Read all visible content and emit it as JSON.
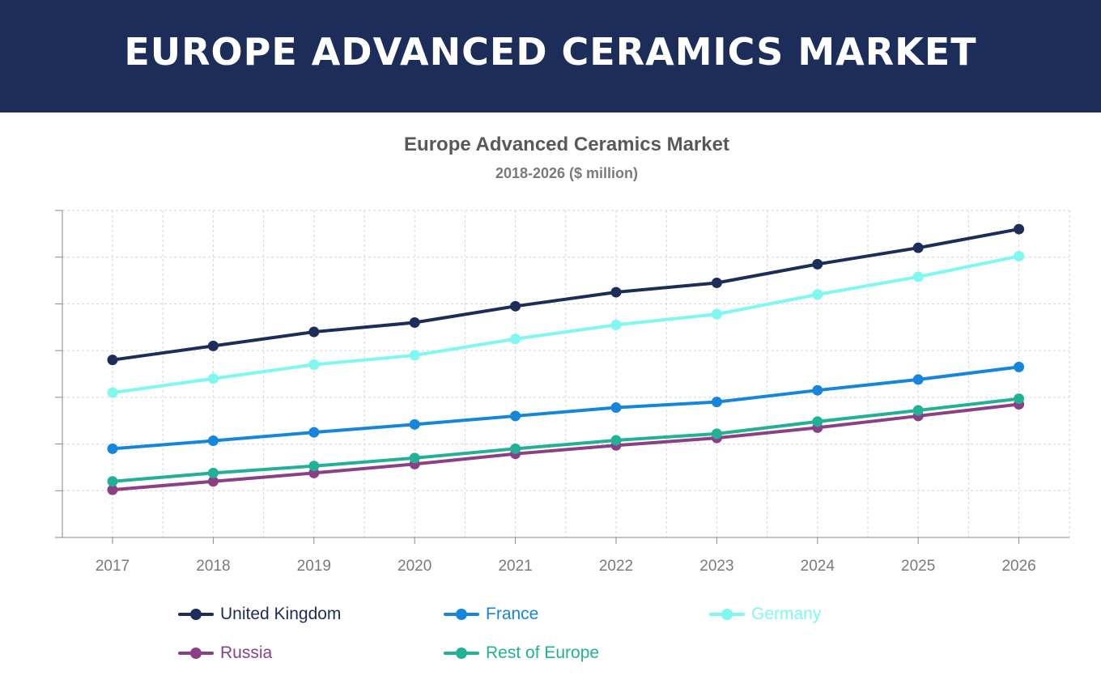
{
  "banner": {
    "title": "EUROPE ADVANCED CERAMICS MARKET"
  },
  "chart_data": {
    "type": "line",
    "title": "Europe Advanced Ceramics Market",
    "subtitle": "2018-2026 ($ million)",
    "xlabel": "",
    "ylabel": "",
    "x": [
      "2017",
      "2018",
      "2019",
      "2020",
      "2021",
      "2022",
      "2023",
      "2024",
      "2025",
      "2026"
    ],
    "ylim": [
      0,
      7
    ],
    "grid": true,
    "legend_position": "bottom",
    "series": [
      {
        "name": "United Kingdom",
        "color": "#1b2d58",
        "values": [
          3.8,
          4.1,
          4.4,
          4.6,
          4.95,
          5.25,
          5.45,
          5.85,
          6.2,
          6.6
        ]
      },
      {
        "name": "France",
        "color": "#1586d9",
        "values": [
          1.9,
          2.07,
          2.25,
          2.42,
          2.6,
          2.78,
          2.9,
          3.15,
          3.38,
          3.65
        ]
      },
      {
        "name": "Germany",
        "color": "#7ff8f0",
        "values": [
          3.1,
          3.4,
          3.7,
          3.9,
          4.25,
          4.55,
          4.78,
          5.2,
          5.58,
          6.02
        ]
      },
      {
        "name": "Russia",
        "color": "#8b3f87",
        "values": [
          1.02,
          1.2,
          1.38,
          1.57,
          1.79,
          1.97,
          2.13,
          2.35,
          2.6,
          2.85
        ]
      },
      {
        "name": "Rest of Europe",
        "color": "#22b096",
        "values": [
          1.2,
          1.38,
          1.53,
          1.7,
          1.9,
          2.08,
          2.22,
          2.48,
          2.72,
          2.97
        ]
      }
    ]
  }
}
